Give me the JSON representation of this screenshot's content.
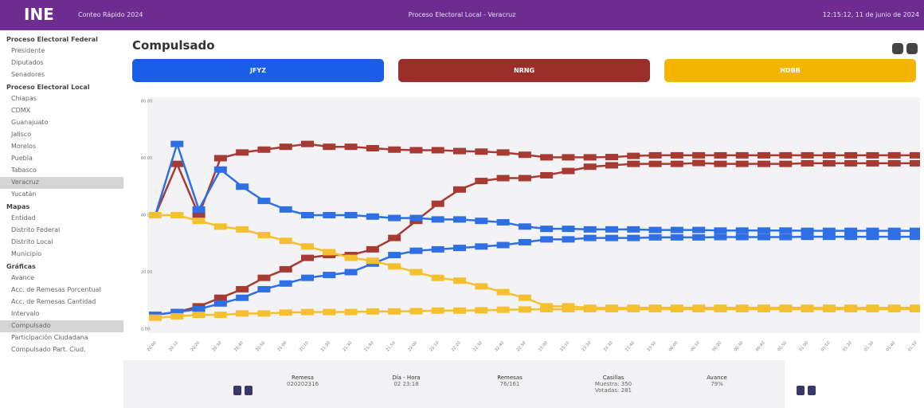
{
  "header": {
    "logo": "INE",
    "app": "Conteo Rápido 2024",
    "process": "Proceso Electoral Local - Veracruz",
    "datetime": "12:15:12, 11 de junio de 2024"
  },
  "sidebar": [
    {
      "title": "Proceso Electoral Federal",
      "items": [
        "Presidente",
        "Diputados",
        "Senadores"
      ]
    },
    {
      "title": "Proceso Electoral Local",
      "items": [
        "Chiapas",
        "CDMX",
        "Guanajuato",
        "Jalisco",
        "Morelos",
        "Puebla",
        "Tabasco",
        "Veracruz",
        "Yucatán"
      ]
    },
    {
      "title": "Mapas",
      "items": [
        "Entidad",
        "Distrito Federal",
        "Distrito Local",
        "Municipio"
      ]
    },
    {
      "title": "Gráficas",
      "items": [
        "Avance",
        "Acc. de Remesas Porcentual",
        "Acc. de Remesas Cantidad",
        "Intervalo",
        "Compulsado",
        "Participación Ciudadana",
        "Compulsado Part. Ciud."
      ]
    }
  ],
  "page_title": "Compulsado",
  "buttons": [
    {
      "label": "JFYZ",
      "color": "#1a5ee8"
    },
    {
      "label": "NRNG",
      "color": "#9a2f2a"
    },
    {
      "label": "HDBB",
      "color": "#f5b400"
    }
  ],
  "chart_data": {
    "type": "line",
    "categories": [
      "20:00",
      "20:10",
      "20:20",
      "20:30",
      "20:40",
      "20:50",
      "21:00",
      "21:10",
      "21:20",
      "21:30",
      "21:40",
      "21:50",
      "22:00",
      "22:10",
      "22:20",
      "22:30",
      "22:40",
      "22:50",
      "23:00",
      "23:10",
      "23:20",
      "23:30",
      "23:40",
      "23:50",
      "00:00",
      "00:10",
      "00:20",
      "00:30",
      "00:40",
      "00:50",
      "01:00",
      "01:10",
      "01:20",
      "01:30",
      "01:40",
      "01:50"
    ],
    "series": [
      {
        "color": "#a83a34",
        "values": [
          40,
          58,
          40,
          60,
          62,
          63,
          64,
          65,
          64,
          64,
          63.5,
          63,
          62.8,
          62.8,
          62.5,
          62.3,
          62,
          61.2,
          60.3,
          60.3,
          60.3,
          60.4,
          60.8,
          61,
          61,
          61,
          61,
          61,
          61,
          61,
          61,
          61,
          61,
          61,
          61,
          61
        ]
      },
      {
        "color": "#a83a34",
        "values": [
          5,
          6,
          8,
          11,
          14,
          18,
          21,
          25,
          26,
          26,
          28,
          32,
          38,
          44,
          49,
          52,
          53,
          53,
          54,
          55.5,
          57,
          57.5,
          58,
          58,
          58,
          58.3,
          58,
          58,
          58,
          58,
          58.2,
          58.2,
          58.2,
          58.2,
          58.2,
          58.2
        ]
      },
      {
        "color": "#2f6fe6",
        "values": [
          40,
          65,
          42,
          56,
          50,
          45,
          42,
          40,
          40,
          40,
          39.5,
          39,
          39,
          38.5,
          38.5,
          38,
          37.5,
          36,
          35.2,
          35.2,
          35,
          35,
          35,
          34.8,
          34.8,
          34.8,
          34.6,
          34.6,
          34.6,
          34.6,
          34.5,
          34.5,
          34.5,
          34.5,
          34.5,
          34.5
        ]
      },
      {
        "color": "#2f6fe6",
        "values": [
          5,
          6,
          7,
          9,
          11,
          14,
          16,
          18,
          19,
          20,
          23,
          26,
          27.5,
          28,
          28.5,
          29,
          29.5,
          30.5,
          31.5,
          31.5,
          32,
          32,
          32,
          32.2,
          32.2,
          32.2,
          32.3,
          32.3,
          32.3,
          32.3,
          32.4,
          32.4,
          32.4,
          32.4,
          32.4,
          32.4
        ]
      },
      {
        "color": "#f5c030",
        "values": [
          40,
          40,
          38,
          36,
          35,
          33,
          31,
          29,
          27,
          25,
          24,
          22,
          20,
          18,
          17,
          15,
          13,
          11,
          8,
          8,
          7.5,
          7.5,
          7.5,
          7.5,
          7.5,
          7.5,
          7.5,
          7.5,
          7.5,
          7.5,
          7.5,
          7.5,
          7.5,
          7.5,
          7.5,
          7.5
        ]
      },
      {
        "color": "#f5c030",
        "values": [
          4,
          4.5,
          5,
          5,
          5.5,
          5.5,
          5.8,
          6,
          6,
          6,
          6.2,
          6.2,
          6.3,
          6.5,
          6.5,
          6.6,
          6.8,
          6.9,
          7,
          7,
          7,
          7,
          7,
          7,
          7,
          7,
          7,
          7,
          7,
          7,
          7,
          7,
          7,
          7,
          7,
          7
        ]
      }
    ],
    "ylim": [
      0,
      80
    ],
    "yticks": [
      {
        "value": 0,
        "label": "0.00"
      },
      {
        "value": 20,
        "label": "20.00"
      },
      {
        "value": 40,
        "label": "40.00"
      },
      {
        "value": 60,
        "label": "60.00"
      },
      {
        "value": 80,
        "label": "80.00"
      }
    ]
  },
  "footer": [
    {
      "label": "Remesa",
      "value": [
        "020202316"
      ]
    },
    {
      "label": "Día - Hora",
      "value": [
        "02 23:18"
      ]
    },
    {
      "label": "Remesas",
      "value": [
        "76/161"
      ]
    },
    {
      "label": "Casillas",
      "value": [
        "Muestra: 350",
        "Votadas: 281"
      ]
    },
    {
      "label": "Avance",
      "value": [
        "79%"
      ]
    }
  ]
}
